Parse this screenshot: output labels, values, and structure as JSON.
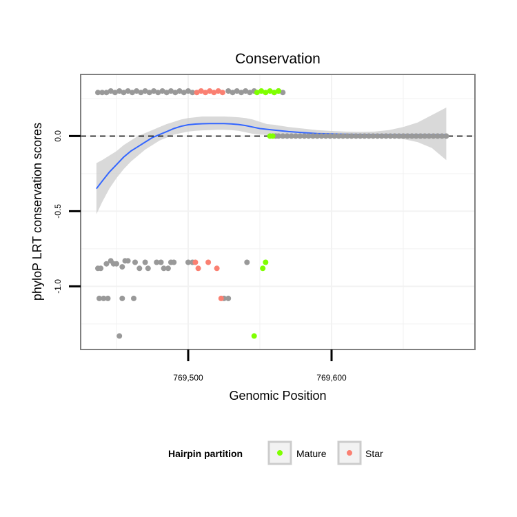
{
  "chart_data": {
    "type": "scatter",
    "title": "Conservation",
    "xlabel": "Genomic Position",
    "ylabel": "phyloP LRT conservation scores",
    "xlim": [
      769425,
      769700
    ],
    "ylim": [
      -1.42,
      0.41
    ],
    "x_ticks": [
      {
        "value": 769500,
        "label": "769,500"
      },
      {
        "value": 769600,
        "label": "769,600"
      }
    ],
    "y_ticks": [
      {
        "value": 0.0,
        "label": "0.0"
      },
      {
        "value": -0.5,
        "label": "-0.5"
      },
      {
        "value": -1.0,
        "label": "-1.0"
      }
    ],
    "reference_line": {
      "y": 0,
      "style": "dashed"
    },
    "legend": {
      "title": "Hairpin partition",
      "position": "bottom",
      "entries": [
        {
          "label": "Mature",
          "color": "#7fff00"
        },
        {
          "label": "Star",
          "color": "#fa8072"
        }
      ]
    },
    "colors": {
      "other": "#999999",
      "Mature": "#7fff00",
      "Star": "#fa8072",
      "smooth": "#3366ff",
      "band": "#cccccc",
      "panel_border": "#7f7f7f",
      "grid": "#f2f2f2"
    },
    "series": [
      {
        "name": "other",
        "points": [
          [
            769437,
            0.29
          ],
          [
            769440,
            0.29
          ],
          [
            769443,
            0.29
          ],
          [
            769446,
            0.3
          ],
          [
            769449,
            0.29
          ],
          [
            769452,
            0.3
          ],
          [
            769455,
            0.29
          ],
          [
            769458,
            0.3
          ],
          [
            769461,
            0.29
          ],
          [
            769464,
            0.3
          ],
          [
            769467,
            0.29
          ],
          [
            769470,
            0.3
          ],
          [
            769473,
            0.29
          ],
          [
            769476,
            0.3
          ],
          [
            769479,
            0.29
          ],
          [
            769482,
            0.3
          ],
          [
            769485,
            0.29
          ],
          [
            769488,
            0.3
          ],
          [
            769491,
            0.29
          ],
          [
            769494,
            0.3
          ],
          [
            769497,
            0.29
          ],
          [
            769500,
            0.3
          ],
          [
            769503,
            0.29
          ],
          [
            769528,
            0.3
          ],
          [
            769531,
            0.29
          ],
          [
            769534,
            0.3
          ],
          [
            769537,
            0.29
          ],
          [
            769540,
            0.3
          ],
          [
            769543,
            0.29
          ],
          [
            769546,
            0.3
          ],
          [
            769560,
            0.29
          ],
          [
            769563,
            0.3
          ],
          [
            769566,
            0.29
          ],
          [
            769437,
            -0.88
          ],
          [
            769439,
            -0.88
          ],
          [
            769443,
            -0.85
          ],
          [
            769446,
            -0.83
          ],
          [
            769448,
            -0.85
          ],
          [
            769450,
            -0.85
          ],
          [
            769454,
            -0.87
          ],
          [
            769456,
            -0.83
          ],
          [
            769458,
            -0.83
          ],
          [
            769463,
            -0.84
          ],
          [
            769466,
            -0.88
          ],
          [
            769470,
            -0.84
          ],
          [
            769472,
            -0.88
          ],
          [
            769478,
            -0.84
          ],
          [
            769481,
            -0.84
          ],
          [
            769483,
            -0.88
          ],
          [
            769486,
            -0.88
          ],
          [
            769488,
            -0.84
          ],
          [
            769490,
            -0.84
          ],
          [
            769500,
            -0.84
          ],
          [
            769503,
            -0.84
          ],
          [
            769541,
            -0.84
          ],
          [
            769438,
            -1.08
          ],
          [
            769441,
            -1.08
          ],
          [
            769444,
            -1.08
          ],
          [
            769454,
            -1.08
          ],
          [
            769462,
            -1.08
          ],
          [
            769525,
            -1.08
          ],
          [
            769528,
            -1.08
          ],
          [
            769452,
            -1.33
          ],
          [
            769561,
            0.0
          ],
          [
            769563,
            0.0
          ],
          [
            769566,
            0.0
          ],
          [
            769569,
            0.0
          ],
          [
            769572,
            0.0
          ],
          [
            769575,
            0.0
          ],
          [
            769578,
            0.0
          ],
          [
            769581,
            0.0
          ],
          [
            769584,
            0.0
          ],
          [
            769587,
            0.0
          ],
          [
            769590,
            0.0
          ],
          [
            769593,
            0.0
          ],
          [
            769596,
            0.0
          ],
          [
            769599,
            0.0
          ],
          [
            769602,
            0.0
          ],
          [
            769605,
            0.0
          ],
          [
            769608,
            0.0
          ],
          [
            769611,
            0.0
          ],
          [
            769614,
            0.0
          ],
          [
            769617,
            0.0
          ],
          [
            769620,
            0.0
          ],
          [
            769623,
            0.0
          ],
          [
            769626,
            0.0
          ],
          [
            769629,
            0.0
          ],
          [
            769632,
            0.0
          ],
          [
            769635,
            0.0
          ],
          [
            769638,
            0.0
          ],
          [
            769641,
            0.0
          ],
          [
            769644,
            0.0
          ],
          [
            769647,
            0.0
          ],
          [
            769650,
            0.0
          ],
          [
            769653,
            0.0
          ],
          [
            769656,
            0.0
          ],
          [
            769659,
            0.0
          ],
          [
            769662,
            0.0
          ],
          [
            769665,
            0.0
          ],
          [
            769668,
            0.0
          ],
          [
            769671,
            0.0
          ],
          [
            769674,
            0.0
          ],
          [
            769677,
            0.0
          ],
          [
            769680,
            0.0
          ]
        ]
      },
      {
        "name": "Star",
        "points": [
          [
            769506,
            0.29
          ],
          [
            769509,
            0.3
          ],
          [
            769512,
            0.29
          ],
          [
            769515,
            0.3
          ],
          [
            769518,
            0.29
          ],
          [
            769521,
            0.3
          ],
          [
            769524,
            0.29
          ],
          [
            769505,
            -0.84
          ],
          [
            769507,
            -0.88
          ],
          [
            769514,
            -0.84
          ],
          [
            769520,
            -0.88
          ],
          [
            769523,
            -1.08
          ]
        ]
      },
      {
        "name": "Mature",
        "points": [
          [
            769548,
            0.29
          ],
          [
            769551,
            0.3
          ],
          [
            769554,
            0.29
          ],
          [
            769557,
            0.3
          ],
          [
            769560,
            0.29
          ],
          [
            769563,
            0.3
          ],
          [
            769552,
            -0.88
          ],
          [
            769554,
            -0.84
          ],
          [
            769546,
            -1.33
          ],
          [
            769557,
            0.0
          ],
          [
            769559,
            0.0
          ]
        ]
      }
    ],
    "smooth": {
      "x": [
        769436,
        769440,
        769445,
        769450,
        769455,
        769460,
        769465,
        769470,
        769475,
        769480,
        769485,
        769490,
        769495,
        769500,
        769505,
        769510,
        769515,
        769520,
        769525,
        769530,
        769535,
        769540,
        769545,
        769550,
        769555,
        769560,
        769570,
        769580,
        769590,
        769600,
        769610,
        769620,
        769630,
        769640,
        769650,
        769660,
        769670,
        769680
      ],
      "y": [
        -0.35,
        -0.3,
        -0.24,
        -0.19,
        -0.14,
        -0.1,
        -0.07,
        -0.04,
        -0.01,
        0.01,
        0.03,
        0.05,
        0.065,
        0.075,
        0.08,
        0.082,
        0.083,
        0.083,
        0.083,
        0.081,
        0.077,
        0.07,
        0.06,
        0.05,
        0.045,
        0.04,
        0.03,
        0.023,
        0.017,
        0.014,
        0.012,
        0.011,
        0.01,
        0.01,
        0.01,
        0.01,
        0.01,
        0.01
      ],
      "lower": [
        -0.52,
        -0.44,
        -0.35,
        -0.28,
        -0.22,
        -0.17,
        -0.13,
        -0.09,
        -0.06,
        -0.03,
        -0.01,
        0.01,
        0.02,
        0.03,
        0.035,
        0.038,
        0.04,
        0.042,
        0.042,
        0.04,
        0.035,
        0.025,
        0.015,
        0.01,
        0.008,
        0.005,
        0.0,
        -0.003,
        -0.005,
        -0.006,
        -0.006,
        -0.006,
        -0.008,
        -0.01,
        -0.02,
        -0.04,
        -0.08,
        -0.16
      ],
      "upper": [
        -0.18,
        -0.16,
        -0.13,
        -0.1,
        -0.06,
        -0.03,
        0.0,
        0.02,
        0.04,
        0.06,
        0.08,
        0.095,
        0.11,
        0.12,
        0.125,
        0.13,
        0.13,
        0.13,
        0.13,
        0.128,
        0.125,
        0.12,
        0.11,
        0.095,
        0.08,
        0.075,
        0.06,
        0.05,
        0.04,
        0.034,
        0.03,
        0.028,
        0.03,
        0.04,
        0.06,
        0.09,
        0.14,
        0.19
      ]
    }
  }
}
